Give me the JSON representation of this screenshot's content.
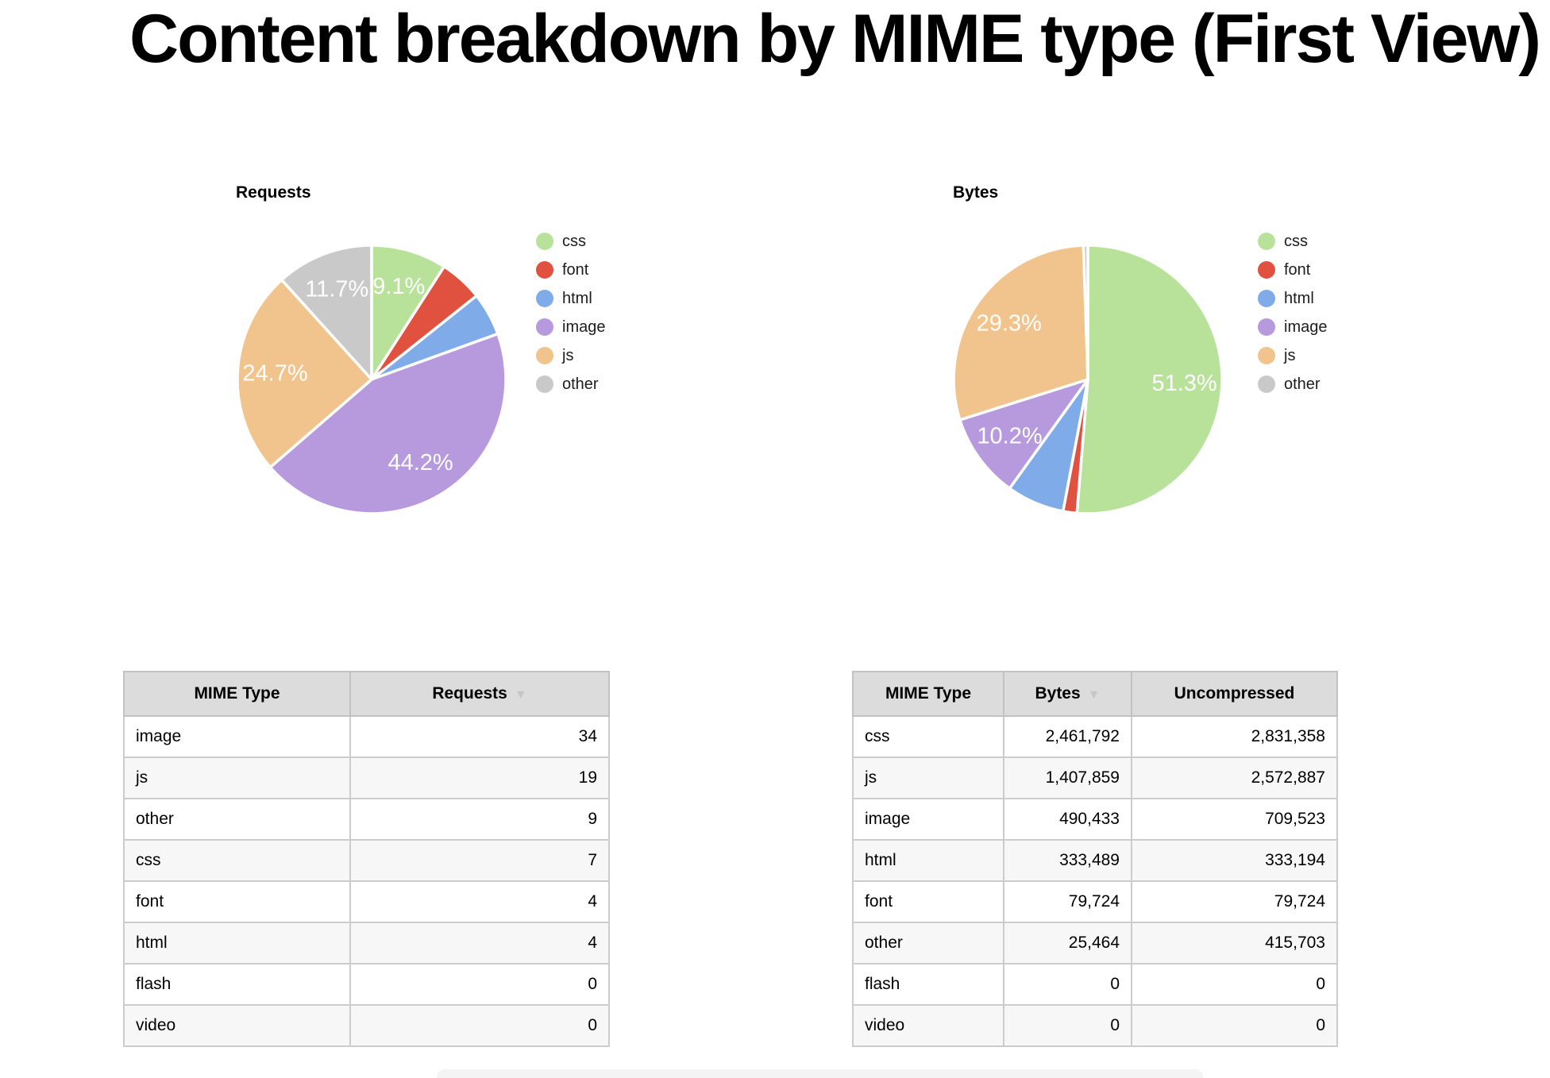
{
  "page": {
    "title": "Content breakdown by MIME type (First View)"
  },
  "palette": {
    "css": "#b8e29a",
    "font": "#e0523f",
    "html": "#7fabe8",
    "image": "#b79ade",
    "js": "#f2c48d",
    "other": "#c9c9c9",
    "slice_label_color": "#ffffff"
  },
  "chart_data": [
    {
      "type": "pie",
      "title": "Requests",
      "categories": [
        "css",
        "font",
        "html",
        "image",
        "js",
        "other"
      ],
      "values": [
        7,
        4,
        4,
        34,
        19,
        9
      ],
      "unit": "requests",
      "legend_position": "right",
      "label_format": "percent",
      "visible_labels": {
        "css": "9.1%",
        "image": "44.2%",
        "js": "24.7%",
        "other": "11.7%"
      },
      "start_angle": "12-oclock",
      "direction": "clockwise"
    },
    {
      "type": "pie",
      "title": "Bytes",
      "categories": [
        "css",
        "font",
        "html",
        "image",
        "js",
        "other"
      ],
      "values": [
        2461792,
        79724,
        333489,
        490433,
        1407859,
        25464
      ],
      "unit": "bytes",
      "legend_position": "right",
      "label_format": "percent",
      "visible_labels": {
        "css": "51.3%",
        "image": "10.2%",
        "js": "29.3%"
      },
      "start_angle": "12-oclock",
      "direction": "clockwise"
    }
  ],
  "tables": [
    {
      "headers": [
        "MIME Type",
        "Requests"
      ],
      "sort_column": "Requests",
      "sort_direction": "descending",
      "rows": [
        [
          "image",
          "34"
        ],
        [
          "js",
          "19"
        ],
        [
          "other",
          "9"
        ],
        [
          "css",
          "7"
        ],
        [
          "font",
          "4"
        ],
        [
          "html",
          "4"
        ],
        [
          "flash",
          "0"
        ],
        [
          "video",
          "0"
        ]
      ]
    },
    {
      "headers": [
        "MIME Type",
        "Bytes",
        "Uncompressed"
      ],
      "sort_column": "Bytes",
      "sort_direction": "descending",
      "rows": [
        [
          "css",
          "2,461,792",
          "2,831,358"
        ],
        [
          "js",
          "1,407,859",
          "2,572,887"
        ],
        [
          "image",
          "490,433",
          "709,523"
        ],
        [
          "html",
          "333,489",
          "333,194"
        ],
        [
          "font",
          "79,724",
          "79,724"
        ],
        [
          "other",
          "25,464",
          "415,703"
        ],
        [
          "flash",
          "0",
          "0"
        ],
        [
          "video",
          "0",
          "0"
        ]
      ]
    }
  ]
}
